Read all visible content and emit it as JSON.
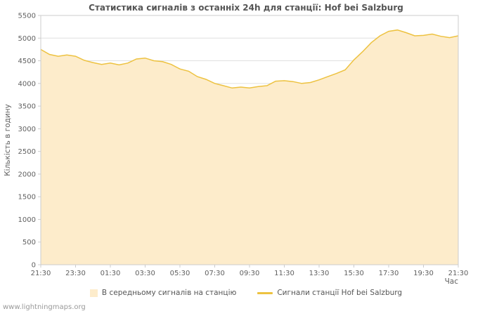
{
  "watermark": "www.lightningmaps.org",
  "chart_data": {
    "type": "area",
    "title": "Статистика сигналів з останніх 24h для станції: Hof bei Salzburg",
    "xlabel": "Час",
    "ylabel": "Кількість в годину",
    "ylim": [
      0,
      5500
    ],
    "y_ticks": [
      0,
      500,
      1000,
      1500,
      2000,
      2500,
      3000,
      3500,
      4000,
      4500,
      5000,
      5500
    ],
    "x_tick_labels": [
      "21:30",
      "23:30",
      "01:30",
      "03:30",
      "05:30",
      "07:30",
      "09:30",
      "11:30",
      "13:30",
      "15:30",
      "17:30",
      "19:30",
      "21:30"
    ],
    "x_interval_minutes": 30,
    "grid": "horizontal-only",
    "legend_position": "bottom",
    "series": [
      {
        "name": "В середньому сигналів на станцію",
        "type": "area",
        "values": [
          4750,
          4640,
          4600,
          4630,
          4600,
          4510,
          4460,
          4420,
          4450,
          4410,
          4450,
          4540,
          4560,
          4500,
          4480,
          4420,
          4320,
          4270,
          4150,
          4090,
          4000,
          3950,
          3900,
          3920,
          3900,
          3930,
          3950,
          4050,
          4060,
          4040,
          4000,
          4020,
          4080,
          4150,
          4220,
          4300,
          4520,
          4700,
          4900,
          5050,
          5150,
          5180,
          5120,
          5050,
          5060,
          5090,
          5040,
          5010,
          5050
        ]
      },
      {
        "name": "Сигнали станції Hof bei Salzburg",
        "type": "line",
        "values": [
          4750,
          4640,
          4600,
          4630,
          4600,
          4510,
          4460,
          4420,
          4450,
          4410,
          4450,
          4540,
          4560,
          4500,
          4480,
          4420,
          4320,
          4270,
          4150,
          4090,
          4000,
          3950,
          3900,
          3920,
          3900,
          3930,
          3950,
          4050,
          4060,
          4040,
          4000,
          4020,
          4080,
          4150,
          4220,
          4300,
          4520,
          4700,
          4900,
          5050,
          5150,
          5180,
          5120,
          5050,
          5060,
          5090,
          5040,
          5010,
          5050
        ]
      }
    ],
    "colors": {
      "area_fill": "#fdeccb",
      "line": "#edc240",
      "grid": "#e0e0e0",
      "axis": "#cccccc",
      "text": "#606060",
      "title": "#555555"
    }
  }
}
